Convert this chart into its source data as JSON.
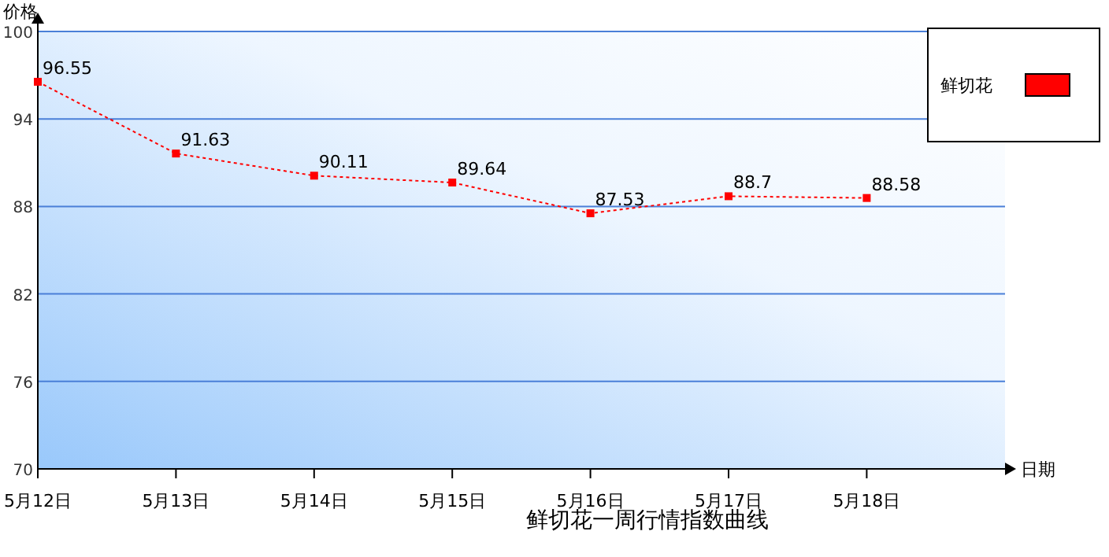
{
  "chart_data": {
    "type": "line",
    "title": "鲜切花一周行情指数曲线",
    "xlabel": "日期",
    "ylabel": "价格",
    "categories": [
      "5月12日",
      "5月13日",
      "5月14日",
      "5月15日",
      "5月16日",
      "5月17日",
      "5月18日"
    ],
    "series": [
      {
        "name": "鲜切花",
        "color": "#ff0000",
        "values": [
          96.55,
          91.63,
          90.11,
          89.64,
          87.53,
          88.7,
          88.58
        ]
      }
    ],
    "ylim": [
      70,
      100
    ],
    "yticks": [
      70,
      76,
      82,
      88,
      94,
      100
    ],
    "grid": "y",
    "legend": "top right",
    "marker": "square",
    "line_style": "dotted",
    "data_labels": true
  }
}
